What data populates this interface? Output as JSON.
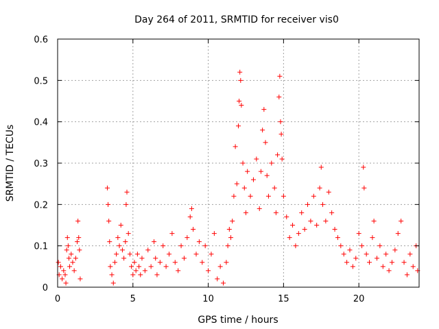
{
  "chart_data": {
    "type": "scatter",
    "title": "Day 264 of 2011, SRMTID for receiver vis0",
    "xlabel": "GPS time / hours",
    "ylabel": "SRMTID / TECUs",
    "xlim": [
      0,
      24
    ],
    "ylim": [
      0,
      0.6
    ],
    "xticks": [
      0,
      5,
      10,
      15,
      20
    ],
    "yticks": [
      0,
      0.1,
      0.2,
      0.3,
      0.4,
      0.5,
      0.6
    ],
    "grid": true,
    "marker": "plus",
    "series": [
      {
        "name": "vis0",
        "color": "#ff0000",
        "points": [
          [
            0.05,
            0.06
          ],
          [
            0.1,
            0.03
          ],
          [
            0.2,
            0.05
          ],
          [
            0.3,
            0.02
          ],
          [
            0.4,
            0.04
          ],
          [
            0.5,
            0.03
          ],
          [
            0.55,
            0.01
          ],
          [
            0.6,
            0.09
          ],
          [
            0.65,
            0.12
          ],
          [
            0.7,
            0.1
          ],
          [
            0.75,
            0.07
          ],
          [
            0.8,
            0.05
          ],
          [
            0.9,
            0.08
          ],
          [
            1.0,
            0.06
          ],
          [
            1.1,
            0.04
          ],
          [
            1.2,
            0.07
          ],
          [
            1.3,
            0.11
          ],
          [
            1.35,
            0.16
          ],
          [
            1.4,
            0.12
          ],
          [
            1.45,
            0.09
          ],
          [
            1.5,
            0.02
          ],
          [
            3.3,
            0.24
          ],
          [
            3.35,
            0.2
          ],
          [
            3.4,
            0.16
          ],
          [
            3.45,
            0.11
          ],
          [
            3.5,
            0.05
          ],
          [
            3.6,
            0.03
          ],
          [
            3.7,
            0.01
          ],
          [
            3.8,
            0.06
          ],
          [
            3.9,
            0.08
          ],
          [
            4.0,
            0.12
          ],
          [
            4.1,
            0.1
          ],
          [
            4.2,
            0.15
          ],
          [
            4.3,
            0.09
          ],
          [
            4.4,
            0.07
          ],
          [
            4.5,
            0.11
          ],
          [
            4.55,
            0.2
          ],
          [
            4.6,
            0.23
          ],
          [
            4.7,
            0.13
          ],
          [
            4.8,
            0.08
          ],
          [
            4.9,
            0.05
          ],
          [
            5.0,
            0.03
          ],
          [
            5.1,
            0.06
          ],
          [
            5.2,
            0.04
          ],
          [
            5.3,
            0.08
          ],
          [
            5.4,
            0.05
          ],
          [
            5.5,
            0.03
          ],
          [
            5.6,
            0.07
          ],
          [
            5.8,
            0.04
          ],
          [
            6.0,
            0.09
          ],
          [
            6.2,
            0.05
          ],
          [
            6.4,
            0.11
          ],
          [
            6.5,
            0.07
          ],
          [
            6.6,
            0.03
          ],
          [
            6.8,
            0.06
          ],
          [
            7.0,
            0.1
          ],
          [
            7.2,
            0.05
          ],
          [
            7.4,
            0.08
          ],
          [
            7.6,
            0.13
          ],
          [
            7.8,
            0.06
          ],
          [
            8.0,
            0.04
          ],
          [
            8.2,
            0.1
          ],
          [
            8.4,
            0.07
          ],
          [
            8.6,
            0.12
          ],
          [
            8.8,
            0.17
          ],
          [
            8.9,
            0.19
          ],
          [
            9.0,
            0.14
          ],
          [
            9.2,
            0.08
          ],
          [
            9.4,
            0.11
          ],
          [
            9.6,
            0.06
          ],
          [
            9.8,
            0.1
          ],
          [
            10.0,
            0.04
          ],
          [
            10.2,
            0.08
          ],
          [
            10.4,
            0.13
          ],
          [
            10.6,
            0.02
          ],
          [
            10.8,
            0.05
          ],
          [
            11.0,
            0.01
          ],
          [
            11.2,
            0.06
          ],
          [
            11.3,
            0.1
          ],
          [
            11.4,
            0.14
          ],
          [
            11.5,
            0.12
          ],
          [
            11.6,
            0.16
          ],
          [
            11.7,
            0.22
          ],
          [
            11.8,
            0.34
          ],
          [
            11.9,
            0.25
          ],
          [
            12.0,
            0.39
          ],
          [
            12.05,
            0.45
          ],
          [
            12.1,
            0.52
          ],
          [
            12.15,
            0.5
          ],
          [
            12.2,
            0.44
          ],
          [
            12.3,
            0.3
          ],
          [
            12.4,
            0.24
          ],
          [
            12.5,
            0.18
          ],
          [
            12.6,
            0.28
          ],
          [
            12.8,
            0.22
          ],
          [
            13.0,
            0.26
          ],
          [
            13.2,
            0.31
          ],
          [
            13.4,
            0.19
          ],
          [
            13.5,
            0.28
          ],
          [
            13.6,
            0.38
          ],
          [
            13.7,
            0.43
          ],
          [
            13.8,
            0.35
          ],
          [
            13.9,
            0.27
          ],
          [
            14.0,
            0.22
          ],
          [
            14.2,
            0.3
          ],
          [
            14.4,
            0.24
          ],
          [
            14.5,
            0.18
          ],
          [
            14.6,
            0.32
          ],
          [
            14.7,
            0.46
          ],
          [
            14.75,
            0.51
          ],
          [
            14.8,
            0.4
          ],
          [
            14.85,
            0.37
          ],
          [
            14.9,
            0.31
          ],
          [
            15.0,
            0.22
          ],
          [
            15.2,
            0.17
          ],
          [
            15.4,
            0.12
          ],
          [
            15.6,
            0.15
          ],
          [
            15.8,
            0.1
          ],
          [
            16.0,
            0.13
          ],
          [
            16.2,
            0.18
          ],
          [
            16.4,
            0.14
          ],
          [
            16.6,
            0.2
          ],
          [
            16.8,
            0.16
          ],
          [
            17.0,
            0.22
          ],
          [
            17.2,
            0.15
          ],
          [
            17.4,
            0.24
          ],
          [
            17.5,
            0.29
          ],
          [
            17.6,
            0.2
          ],
          [
            17.8,
            0.16
          ],
          [
            18.0,
            0.23
          ],
          [
            18.2,
            0.18
          ],
          [
            18.4,
            0.14
          ],
          [
            18.6,
            0.12
          ],
          [
            18.8,
            0.1
          ],
          [
            19.0,
            0.08
          ],
          [
            19.2,
            0.06
          ],
          [
            19.4,
            0.09
          ],
          [
            19.6,
            0.05
          ],
          [
            19.8,
            0.07
          ],
          [
            20.0,
            0.13
          ],
          [
            20.2,
            0.1
          ],
          [
            20.3,
            0.29
          ],
          [
            20.35,
            0.24
          ],
          [
            20.5,
            0.08
          ],
          [
            20.7,
            0.06
          ],
          [
            20.9,
            0.12
          ],
          [
            21.0,
            0.16
          ],
          [
            21.2,
            0.07
          ],
          [
            21.4,
            0.1
          ],
          [
            21.6,
            0.05
          ],
          [
            21.8,
            0.08
          ],
          [
            22.0,
            0.04
          ],
          [
            22.2,
            0.06
          ],
          [
            22.4,
            0.09
          ],
          [
            22.6,
            0.13
          ],
          [
            22.8,
            0.16
          ],
          [
            23.0,
            0.06
          ],
          [
            23.2,
            0.03
          ],
          [
            23.4,
            0.08
          ],
          [
            23.6,
            0.05
          ],
          [
            23.8,
            0.1
          ],
          [
            23.9,
            0.04
          ]
        ]
      }
    ]
  }
}
